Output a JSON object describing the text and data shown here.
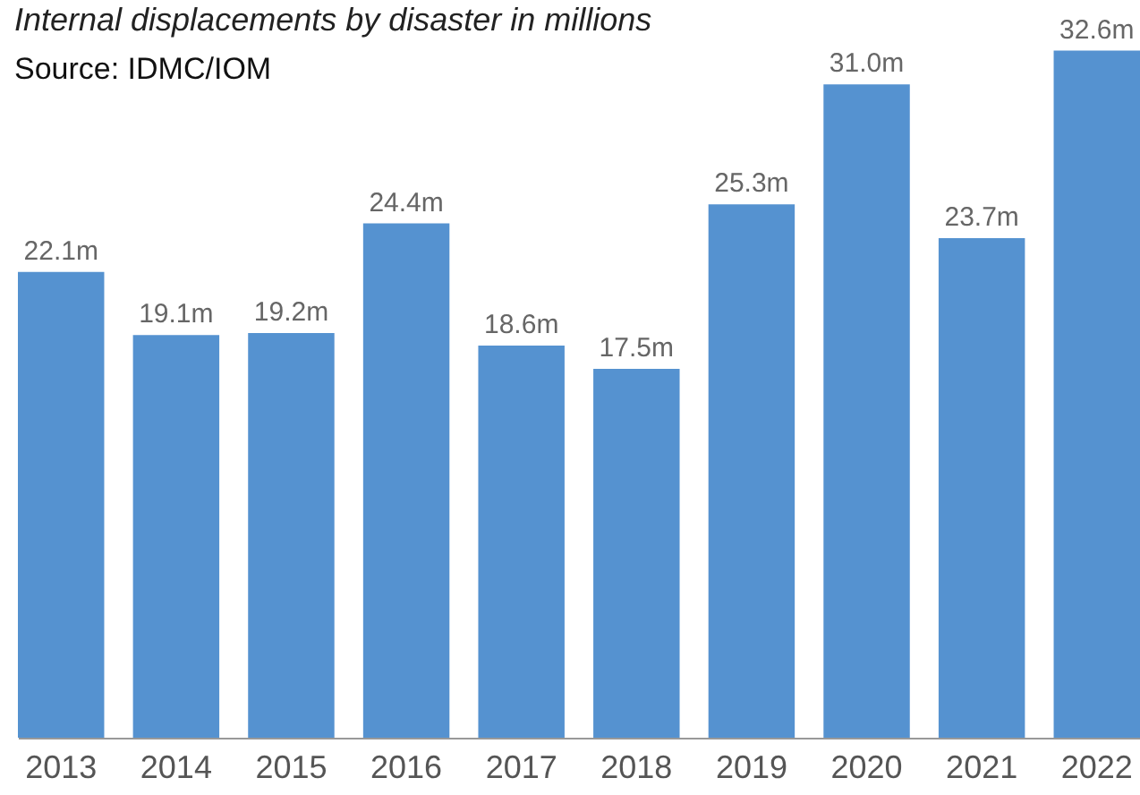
{
  "chart_data": {
    "type": "bar",
    "title": "Internal displacements by disaster in millions",
    "annotations": [
      "Source: IDMC/IOM"
    ],
    "categories": [
      "2013",
      "2014",
      "2015",
      "2016",
      "2017",
      "2018",
      "2019",
      "2020",
      "2021",
      "2022"
    ],
    "values": [
      22.1,
      19.1,
      19.2,
      24.4,
      18.6,
      17.5,
      25.3,
      31.0,
      23.7,
      32.6
    ],
    "value_labels": [
      "22.1m",
      "19.1m",
      "19.2m",
      "24.4m",
      "18.6m",
      "17.5m",
      "25.3m",
      "31.0m",
      "23.7m",
      "32.6m"
    ],
    "color": "#5592d0"
  }
}
